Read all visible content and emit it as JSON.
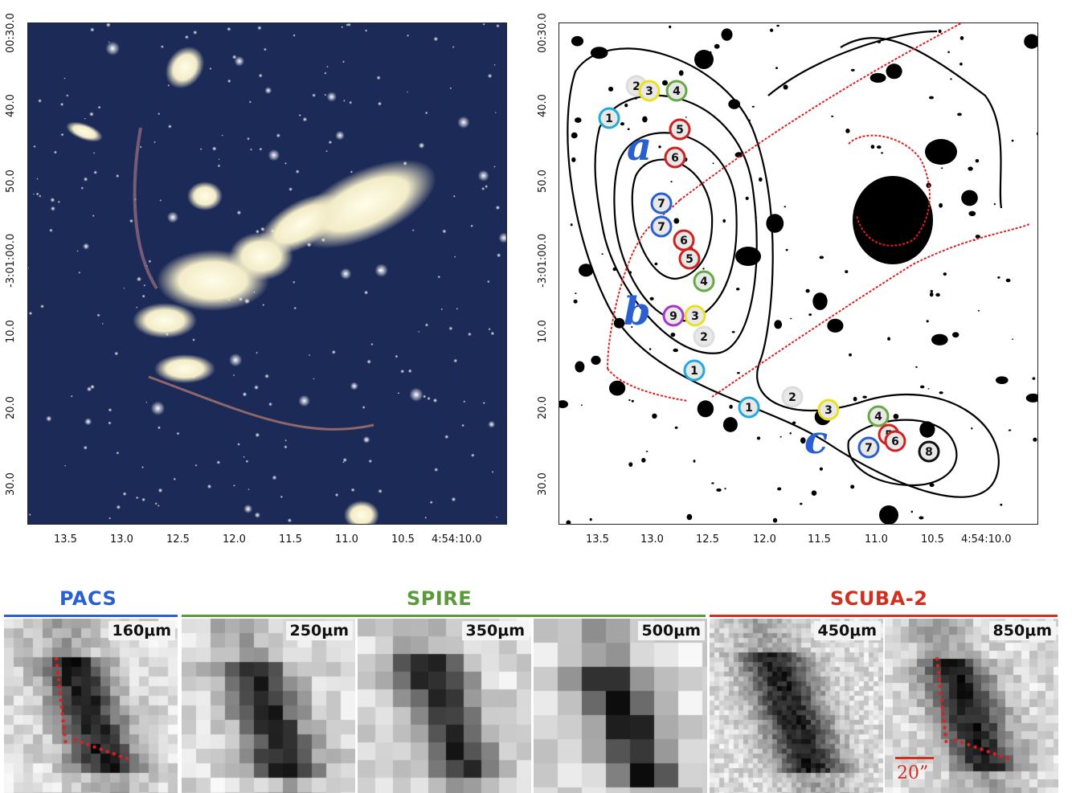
{
  "top_left": {
    "x_ticks": [
      "13.5",
      "13.0",
      "12.5",
      "12.0",
      "11.5",
      "11.0",
      "10.5",
      "4:54:10.0"
    ],
    "y_ticks": [
      "00:30.0",
      "40.0",
      "50.0",
      "-3:01:00.0",
      "10.0",
      "20.0",
      "30.0"
    ]
  },
  "top_right": {
    "x_ticks": [
      "13.5",
      "13.0",
      "12.5",
      "12.0",
      "11.5",
      "11.0",
      "10.5",
      "4:54:10.0"
    ],
    "y_ticks": [
      "00:30.0",
      "40.0",
      "50.0",
      "-3:01:00.0",
      "10.0",
      "20.0",
      "30.0"
    ],
    "region_labels": [
      "a",
      "b",
      "c"
    ],
    "markers": [
      {
        "label": "2",
        "color": "#ffffff"
      },
      {
        "label": "3",
        "color": "#e8e020"
      },
      {
        "label": "4",
        "color": "#66aa44"
      },
      {
        "label": "1",
        "color": "#22aadd"
      },
      {
        "label": "5",
        "color": "#cc2222"
      },
      {
        "label": "6",
        "color": "#cc2222"
      },
      {
        "label": "7",
        "color": "#2a5fcf"
      },
      {
        "label": "7",
        "color": "#2a5fcf"
      },
      {
        "label": "6",
        "color": "#cc2222"
      },
      {
        "label": "5",
        "color": "#cc2222"
      },
      {
        "label": "4",
        "color": "#66aa44"
      },
      {
        "label": "9",
        "color": "#aa33cc"
      },
      {
        "label": "3",
        "color": "#e8e020"
      },
      {
        "label": "2",
        "color": "#ffffff"
      },
      {
        "label": "1",
        "color": "#22aadd"
      },
      {
        "label": "1",
        "color": "#22aadd"
      },
      {
        "label": "2",
        "color": "#ffffff"
      },
      {
        "label": "3",
        "color": "#e8e020"
      },
      {
        "label": "4",
        "color": "#66aa44"
      },
      {
        "label": "5",
        "color": "#cc2222"
      },
      {
        "label": "6",
        "color": "#cc2222"
      },
      {
        "label": "7",
        "color": "#2a5fcf"
      },
      {
        "label": "8",
        "color": "#111111"
      }
    ]
  },
  "bands": [
    {
      "name": "PACS",
      "color": "#2a5fcf"
    },
    {
      "name": "SPIRE",
      "color": "#5a9a3a"
    },
    {
      "name": "SCUBA-2",
      "color": "#d03020"
    }
  ],
  "thumbnails": [
    {
      "wavelength": "160μm"
    },
    {
      "wavelength": "250μm"
    },
    {
      "wavelength": "350μm"
    },
    {
      "wavelength": "500μm"
    },
    {
      "wavelength": "450μm"
    },
    {
      "wavelength": "850μm"
    }
  ],
  "scale_bar": "20”"
}
